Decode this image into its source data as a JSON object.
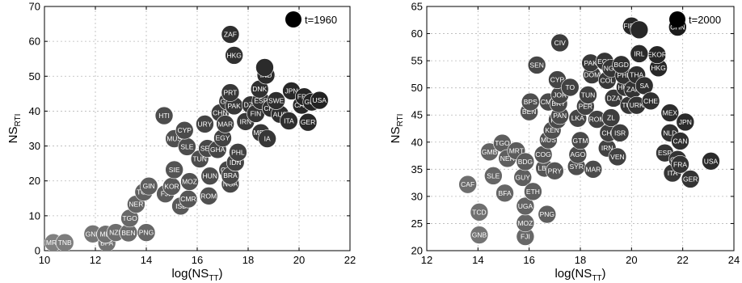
{
  "chart_data": [
    {
      "type": "scatter",
      "xlabel": "log(NS",
      "xlabel_sub": "TT",
      "xlabel_close": ")",
      "ylabel": "NS",
      "ylabel_sub": "RTI",
      "xlim": [
        10,
        22
      ],
      "ylim": [
        0,
        70
      ],
      "xticks": [
        10,
        12,
        14,
        16,
        18,
        20,
        22
      ],
      "yticks": [
        0,
        10,
        20,
        30,
        40,
        50,
        60,
        70
      ],
      "grid": true,
      "legend": "t=1960",
      "legend_position": "top-right",
      "legend_color": "#000000",
      "points": [
        {
          "label": "MRT",
          "x": 10.35,
          "y": 2.3
        },
        {
          "label": "TNB",
          "x": 10.8,
          "y": 2.3
        },
        {
          "label": "GNB",
          "x": 11.9,
          "y": 4.8
        },
        {
          "label": "BFA",
          "x": 12.45,
          "y": 2.2
        },
        {
          "label": "MLI",
          "x": 12.4,
          "y": 4.7
        },
        {
          "label": "NZL",
          "x": 12.8,
          "y": 5.2
        },
        {
          "label": "BEN",
          "x": 13.3,
          "y": 5.1
        },
        {
          "label": "PNG",
          "x": 14.0,
          "y": 5.2
        },
        {
          "label": "TGO",
          "x": 13.35,
          "y": 9.3
        },
        {
          "label": "NER",
          "x": 13.6,
          "y": 13.3
        },
        {
          "label": "TCD",
          "x": 13.9,
          "y": 16.8
        },
        {
          "label": "GIN",
          "x": 14.1,
          "y": 18.5
        },
        {
          "label": "FJI",
          "x": 14.75,
          "y": 16.3
        },
        {
          "label": "ISL",
          "x": 15.35,
          "y": 12.8
        },
        {
          "label": "CMR",
          "x": 15.65,
          "y": 14.8
        },
        {
          "label": "ROM",
          "x": 16.45,
          "y": 15.7
        },
        {
          "label": "NGA",
          "x": 17.3,
          "y": 19.1
        },
        {
          "label": "MOZ",
          "x": 15.7,
          "y": 19.8
        },
        {
          "label": "KOR",
          "x": 15.0,
          "y": 18.4
        },
        {
          "label": "SIE",
          "x": 15.1,
          "y": 23.2
        },
        {
          "label": "HUN",
          "x": 16.5,
          "y": 21.4
        },
        {
          "label": "TUN",
          "x": 16.1,
          "y": 26.3
        },
        {
          "label": "SLE",
          "x": 15.6,
          "y": 29.8
        },
        {
          "label": "SEN",
          "x": 16.4,
          "y": 29.3
        },
        {
          "label": "MUS",
          "x": 15.1,
          "y": 32.1
        },
        {
          "label": "CYP",
          "x": 15.5,
          "y": 34.5
        },
        {
          "label": "HTI",
          "x": 14.7,
          "y": 38.7
        },
        {
          "label": "URY",
          "x": 16.3,
          "y": 36.3
        },
        {
          "label": "MAR",
          "x": 17.1,
          "y": 36.3
        },
        {
          "label": "CHN",
          "x": 16.9,
          "y": 39.5
        },
        {
          "label": "EGY",
          "x": 17.0,
          "y": 32.3
        },
        {
          "label": "GHA",
          "x": 16.8,
          "y": 29.0
        },
        {
          "label": "PHL",
          "x": 17.6,
          "y": 28.2
        },
        {
          "label": "IDN",
          "x": 17.5,
          "y": 25.3
        },
        {
          "label": "COL",
          "x": 17.2,
          "y": 23.2
        },
        {
          "label": "BRA",
          "x": 17.3,
          "y": 21.5
        },
        {
          "label": "PAK",
          "x": 17.45,
          "y": 41.5
        },
        {
          "label": "GRC",
          "x": 17.2,
          "y": 42.8
        },
        {
          "label": "IRN",
          "x": 17.9,
          "y": 37.0
        },
        {
          "label": "PRT",
          "x": 17.3,
          "y": 45.3
        },
        {
          "label": "DZA",
          "x": 18.1,
          "y": 41.8
        },
        {
          "label": "FIN",
          "x": 18.3,
          "y": 39.3
        },
        {
          "label": "ESP",
          "x": 18.5,
          "y": 43.0
        },
        {
          "label": "MEX",
          "x": 18.5,
          "y": 33.8
        },
        {
          "label": "IA",
          "x": 18.75,
          "y": 32.1
        },
        {
          "label": "DNK",
          "x": 18.45,
          "y": 46.3
        },
        {
          "label": "SWE",
          "x": 19.1,
          "y": 43.0
        },
        {
          "label": "CHE",
          "x": 18.9,
          "y": 40.8
        },
        {
          "label": "AUS",
          "x": 19.25,
          "y": 39.1
        },
        {
          "label": "ITA",
          "x": 19.6,
          "y": 37.2
        },
        {
          "label": "IND",
          "x": 18.7,
          "y": 50.3
        },
        {
          "label": "JPN",
          "x": 19.7,
          "y": 45.8
        },
        {
          "label": "FRA",
          "x": 20.2,
          "y": 44.1
        },
        {
          "label": "CAN",
          "x": 20.1,
          "y": 41.7
        },
        {
          "label": "GBR",
          "x": 20.5,
          "y": 42.6
        },
        {
          "label": "USA",
          "x": 20.8,
          "y": 43.1
        },
        {
          "label": "GER",
          "x": 20.35,
          "y": 36.8
        },
        {
          "label": "ZAF",
          "x": 17.3,
          "y": 62.0
        },
        {
          "label": "HKG",
          "x": 17.45,
          "y": 56.0
        },
        {
          "label": "",
          "x": 18.65,
          "y": 52.5
        }
      ]
    },
    {
      "type": "scatter",
      "xlabel": "log(NS",
      "xlabel_sub": "TT",
      "xlabel_close": ")",
      "ylabel": "NS",
      "ylabel_sub": "RTI",
      "xlim": [
        12,
        24
      ],
      "ylim": [
        20,
        65
      ],
      "xticks": [
        12,
        14,
        16,
        18,
        20,
        22,
        24
      ],
      "yticks": [
        20,
        25,
        30,
        35,
        40,
        45,
        50,
        55,
        60,
        65
      ],
      "grid": true,
      "legend": "t=2000",
      "legend_position": "top-right",
      "legend_color": "#000000",
      "points": [
        {
          "label": "CAF",
          "x": 13.6,
          "y": 32.2
        },
        {
          "label": "TCD",
          "x": 14.05,
          "y": 27.1
        },
        {
          "label": "GNB",
          "x": 14.05,
          "y": 22.9
        },
        {
          "label": "SLE",
          "x": 14.6,
          "y": 33.8
        },
        {
          "label": "BFA",
          "x": 15.05,
          "y": 30.6
        },
        {
          "label": "GMB",
          "x": 14.45,
          "y": 38.2
        },
        {
          "label": "TGO",
          "x": 14.95,
          "y": 39.8
        },
        {
          "label": "NER",
          "x": 15.15,
          "y": 37.0
        },
        {
          "label": "MRT",
          "x": 15.5,
          "y": 38.4
        },
        {
          "label": "BDG",
          "x": 15.85,
          "y": 36.4
        },
        {
          "label": "GUY",
          "x": 15.75,
          "y": 33.5
        },
        {
          "label": "ETH",
          "x": 16.15,
          "y": 30.9
        },
        {
          "label": "UGA",
          "x": 15.85,
          "y": 28.2
        },
        {
          "label": "MOZ",
          "x": 15.85,
          "y": 25.1
        },
        {
          "label": "FJI",
          "x": 15.85,
          "y": 22.6
        },
        {
          "label": "PNG",
          "x": 16.7,
          "y": 26.7
        },
        {
          "label": "COG",
          "x": 16.55,
          "y": 37.7
        },
        {
          "label": "MUS",
          "x": 16.75,
          "y": 40.4
        },
        {
          "label": "LBN",
          "x": 16.6,
          "y": 35.2
        },
        {
          "label": "PRY",
          "x": 17.0,
          "y": 34.7
        },
        {
          "label": "SYR",
          "x": 17.85,
          "y": 35.5
        },
        {
          "label": "MAR",
          "x": 18.5,
          "y": 35.0
        },
        {
          "label": "AGO",
          "x": 17.9,
          "y": 37.7
        },
        {
          "label": "GTM",
          "x": 18.0,
          "y": 40.3
        },
        {
          "label": "KEN",
          "x": 16.9,
          "y": 42.2
        },
        {
          "label": "PHL",
          "x": 17.1,
          "y": 44.1
        },
        {
          "label": "LKA",
          "x": 17.9,
          "y": 44.4
        },
        {
          "label": "PAN",
          "x": 17.2,
          "y": 44.9
        },
        {
          "label": "CMR",
          "x": 16.75,
          "y": 47.4
        },
        {
          "label": "BRY",
          "x": 17.15,
          "y": 47.1
        },
        {
          "label": "JOR",
          "x": 17.2,
          "y": 48.7
        },
        {
          "label": "CYP",
          "x": 17.1,
          "y": 51.5
        },
        {
          "label": "TO",
          "x": 17.6,
          "y": 50.1
        },
        {
          "label": "SEN",
          "x": 16.3,
          "y": 54.2
        },
        {
          "label": "CIV",
          "x": 17.2,
          "y": 58.3
        },
        {
          "label": "BPS",
          "x": 16.05,
          "y": 47.4
        },
        {
          "label": "BEN",
          "x": 16.0,
          "y": 45.6
        },
        {
          "label": "TUN",
          "x": 18.3,
          "y": 48.7
        },
        {
          "label": "PER",
          "x": 18.2,
          "y": 46.6
        },
        {
          "label": "ROM",
          "x": 18.65,
          "y": 44.2
        },
        {
          "label": "ZL",
          "x": 19.2,
          "y": 44.5
        },
        {
          "label": "CHL",
          "x": 19.1,
          "y": 41.7
        },
        {
          "label": "ISR",
          "x": 19.55,
          "y": 41.7
        },
        {
          "label": "IRN",
          "x": 19.05,
          "y": 38.9
        },
        {
          "label": "VEN",
          "x": 19.45,
          "y": 37.3
        },
        {
          "label": "PAK",
          "x": 18.4,
          "y": 54.6
        },
        {
          "label": "EGY",
          "x": 18.95,
          "y": 54.9
        },
        {
          "label": "DOM",
          "x": 18.45,
          "y": 52.4
        },
        {
          "label": "NGA",
          "x": 19.2,
          "y": 53.6
        },
        {
          "label": "COL",
          "x": 19.05,
          "y": 51.4
        },
        {
          "label": "BGD",
          "x": 19.6,
          "y": 54.3
        },
        {
          "label": "PHL",
          "x": 19.7,
          "y": 52.3
        },
        {
          "label": "HUN",
          "x": 19.75,
          "y": 50.1
        },
        {
          "label": "THA",
          "x": 20.2,
          "y": 52.4
        },
        {
          "label": "DZA",
          "x": 19.3,
          "y": 48.1
        },
        {
          "label": "TUR",
          "x": 19.9,
          "y": 46.8
        },
        {
          "label": "URK",
          "x": 20.2,
          "y": 46.8
        },
        {
          "label": "IRL",
          "x": 20.3,
          "y": 56.3
        },
        {
          "label": "SA",
          "x": 20.5,
          "y": 50.4
        },
        {
          "label": "ZAF",
          "x": 20.05,
          "y": 49.7
        },
        {
          "label": "CHE",
          "x": 20.75,
          "y": 47.6
        },
        {
          "label": "EKOR",
          "x": 21.0,
          "y": 56.1
        },
        {
          "label": "HKG",
          "x": 21.05,
          "y": 53.7
        },
        {
          "label": "FIDN",
          "x": 20.0,
          "y": 61.4
        },
        {
          "label": "",
          "x": 20.3,
          "y": 60.7
        },
        {
          "label": "CHN",
          "x": 21.8,
          "y": 61.2
        },
        {
          "label": "MEX",
          "x": 21.5,
          "y": 45.4
        },
        {
          "label": "JPN",
          "x": 22.1,
          "y": 43.7
        },
        {
          "label": "NLD",
          "x": 21.5,
          "y": 41.7
        },
        {
          "label": "CAN",
          "x": 21.9,
          "y": 40.2
        },
        {
          "label": "ESP",
          "x": 21.3,
          "y": 38.0
        },
        {
          "label": "GBR",
          "x": 21.8,
          "y": 36.8
        },
        {
          "label": "FRA",
          "x": 21.9,
          "y": 35.9
        },
        {
          "label": "ITA",
          "x": 21.6,
          "y": 34.3
        },
        {
          "label": "GER",
          "x": 22.3,
          "y": 33.2
        },
        {
          "label": "USA",
          "x": 23.1,
          "y": 36.5
        }
      ]
    }
  ]
}
